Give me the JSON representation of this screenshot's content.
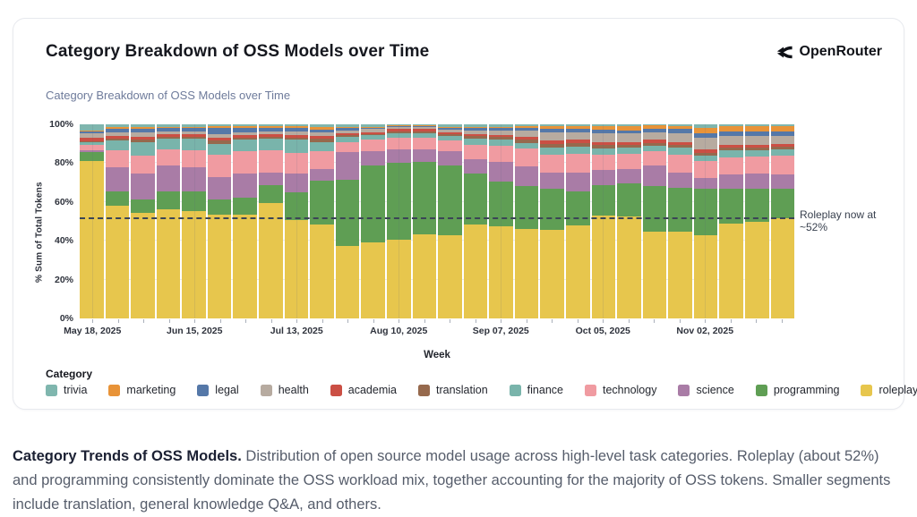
{
  "card": {
    "title": "Category Breakdown of OSS Models over Time",
    "subtitle": "Category Breakdown of OSS Models over Time",
    "brand_name": "OpenRouter"
  },
  "chart_data": {
    "type": "bar",
    "variant": "stacked-100-percent",
    "title": "Category Breakdown of OSS Models over Time",
    "xlabel": "Week",
    "ylabel": "% Sum of Total Tokens",
    "ylim": [
      0,
      100
    ],
    "y_ticks": [
      "0%",
      "20%",
      "40%",
      "60%",
      "80%",
      "100%"
    ],
    "legend_title": "Category",
    "legend_position": "bottom",
    "grid": true,
    "annotation": {
      "label": "Roleplay now at ~52%",
      "y": 52,
      "line_style": "dashed",
      "line_color": "#3b4556"
    },
    "x": [
      "May 18, 2025",
      "May 25, 2025",
      "Jun 01, 2025",
      "Jun 08, 2025",
      "Jun 15, 2025",
      "Jun 22, 2025",
      "Jun 29, 2025",
      "Jul 06, 2025",
      "Jul 13, 2025",
      "Jul 20, 2025",
      "Jul 27, 2025",
      "Aug 03, 2025",
      "Aug 10, 2025",
      "Aug 17, 2025",
      "Aug 24, 2025",
      "Aug 31, 2025",
      "Sep 07, 2025",
      "Sep 14, 2025",
      "Sep 21, 2025",
      "Sep 28, 2025",
      "Oct 05, 2025",
      "Oct 12, 2025",
      "Oct 19, 2025",
      "Oct 26, 2025",
      "Nov 02, 2025",
      "Nov 09, 2025",
      "Nov 16, 2025",
      "Nov 23, 2025"
    ],
    "x_ticks": [
      {
        "index": 0,
        "label": "May 18, 2025"
      },
      {
        "index": 4,
        "label": "Jun 15, 2025"
      },
      {
        "index": 8,
        "label": "Jul 13, 2025"
      },
      {
        "index": 12,
        "label": "Aug 10, 2025"
      },
      {
        "index": 16,
        "label": "Sep 07, 2025"
      },
      {
        "index": 20,
        "label": "Oct 05, 2025"
      },
      {
        "index": 24,
        "label": "Nov 02, 2025"
      }
    ],
    "stack_order_bottom_to_top": [
      "roleplay",
      "programming",
      "science",
      "technology",
      "finance",
      "translation",
      "academia",
      "health",
      "legal",
      "marketing",
      "trivia"
    ],
    "series": [
      {
        "name": "trivia",
        "color": "#7fb6ae",
        "values": [
          3,
          1.5,
          1.5,
          1.5,
          1.5,
          1,
          1,
          1,
          1,
          1.5,
          1.5,
          1.5,
          0.5,
          0.5,
          1.5,
          1.5,
          1.5,
          1,
          1,
          1,
          1,
          1,
          0.5,
          1,
          2,
          1,
          1,
          1
        ]
      },
      {
        "name": "marketing",
        "color": "#e89338",
        "values": [
          0.5,
          1,
          1,
          0.5,
          0.5,
          1,
          1,
          1,
          1,
          1,
          0.5,
          0.5,
          0.5,
          0.5,
          0.5,
          0.5,
          0.5,
          1,
          1.5,
          1.5,
          1.5,
          2,
          2,
          1.5,
          2.5,
          2.5,
          2.5,
          2.5
        ]
      },
      {
        "name": "legal",
        "color": "#5578a8",
        "values": [
          1,
          1.5,
          1.5,
          1.5,
          1.5,
          3,
          2,
          1.5,
          1.5,
          1.5,
          1,
          0.5,
          0.5,
          0.5,
          0.5,
          1,
          1,
          1,
          1.5,
          1.5,
          2,
          1.5,
          1.5,
          2,
          2.5,
          2.5,
          2.5,
          2.5
        ]
      },
      {
        "name": "health",
        "color": "#b7aba0",
        "values": [
          2.5,
          2,
          2.5,
          1.5,
          1.5,
          2,
          1.5,
          1.5,
          2,
          2,
          1.5,
          1.5,
          1,
          1,
          1.5,
          2,
          2.5,
          3.5,
          4.5,
          4,
          4.5,
          4.5,
          4,
          4.5,
          6,
          4.5,
          4.5,
          4
        ]
      },
      {
        "name": "academia",
        "color": "#cb4f44",
        "values": [
          1.5,
          1.5,
          1.5,
          1.5,
          1.5,
          1.5,
          1.5,
          1.5,
          1.5,
          1.5,
          1,
          1,
          1,
          1,
          1,
          1,
          1,
          1.5,
          1.5,
          1.5,
          1.5,
          1.5,
          1.5,
          1.5,
          1.5,
          1.5,
          1.5,
          1.5
        ]
      },
      {
        "name": "translation",
        "color": "#96694d",
        "values": [
          0.5,
          1,
          1,
          1,
          1,
          1.5,
          1,
          1,
          1,
          1.5,
          1,
          0.5,
          1,
          1,
          1,
          1.5,
          1.5,
          1.5,
          2,
          2,
          2,
          1.5,
          1.5,
          1.5,
          1.5,
          1.5,
          1.5,
          1.5
        ]
      },
      {
        "name": "finance",
        "color": "#79b4ab",
        "values": [
          1.5,
          5,
          7,
          5.5,
          6,
          5.5,
          6,
          6,
          6.5,
          5,
          2.5,
          2.5,
          2.5,
          2.5,
          2.5,
          3,
          3,
          3,
          3.5,
          3.5,
          3,
          3,
          3,
          3.5,
          3,
          3.5,
          3,
          3
        ]
      },
      {
        "name": "technology",
        "color": "#f09ba1",
        "values": [
          3,
          8.5,
          9.5,
          8,
          8.5,
          11.5,
          11.5,
          11.5,
          11,
          9,
          5.5,
          6,
          6,
          6,
          5.5,
          7.5,
          8.5,
          9,
          9.5,
          10,
          8,
          8,
          7,
          9.5,
          8.5,
          9,
          9,
          10
        ]
      },
      {
        "name": "science",
        "color": "#a97ca6",
        "values": [
          1,
          12.5,
          13,
          13.5,
          12.5,
          11.5,
          12.5,
          6.5,
          9.5,
          6,
          14,
          7,
          7,
          6.5,
          7,
          7.5,
          10,
          10.5,
          8,
          9.5,
          8,
          7.5,
          11,
          7.5,
          5.5,
          7,
          7.5,
          7
        ]
      },
      {
        "name": "programming",
        "color": "#5f9e54",
        "values": [
          4.5,
          7.5,
          7,
          9.5,
          10,
          8,
          8.5,
          9,
          14.5,
          22.5,
          34,
          40,
          39.5,
          37,
          36,
          26,
          23,
          22,
          21.5,
          17.5,
          15.5,
          17,
          23.5,
          23,
          24,
          18,
          17,
          15.5
        ]
      },
      {
        "name": "roleplay",
        "color": "#e7c64d",
        "values": [
          81,
          58,
          54.5,
          56,
          55.5,
          53.5,
          53.5,
          59.5,
          50.5,
          48.5,
          37.5,
          39,
          40.5,
          43.5,
          43,
          48.5,
          47.5,
          46,
          45.5,
          48,
          53,
          52.5,
          44.5,
          44.5,
          43,
          49,
          50,
          51.5
        ]
      }
    ]
  },
  "caption": {
    "lead": "Category Trends of OSS Models.",
    "body": " Distribution of open source model usage across high-level task categories. Roleplay (about 52%) and programming consistently dominate the OSS workload mix, together accounting for the majority of OSS tokens. Smaller segments include translation, general knowledge Q&A, and others."
  }
}
